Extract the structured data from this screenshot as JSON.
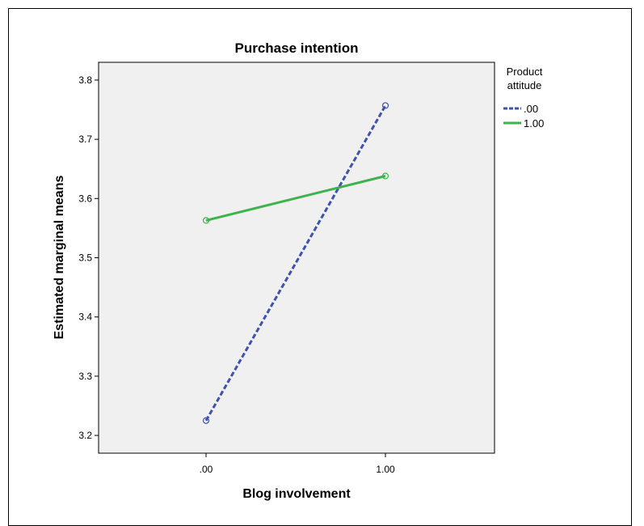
{
  "chart_data": {
    "type": "line",
    "title": "Purchase intention",
    "xlabel": "Blog involvement",
    "ylabel": "Estimated marginal means",
    "categories": [
      ".00",
      "1.00"
    ],
    "y_ticks": [
      "3.2",
      "3.3",
      "3.4",
      "3.5",
      "3.6",
      "3.7",
      "3.8"
    ],
    "ylim": [
      3.17,
      3.83
    ],
    "grid": false,
    "legend": {
      "title": "Product attitude",
      "title_lines": [
        "Product",
        "attitude"
      ],
      "placement": "right-top"
    },
    "series": [
      {
        "name": ".00",
        "values": [
          3.225,
          3.757
        ],
        "color": "#3f51b1",
        "dash": "dashed"
      },
      {
        "name": "1.00",
        "values": [
          3.563,
          3.638
        ],
        "color": "#3cb44b",
        "dash": "solid"
      }
    ]
  }
}
